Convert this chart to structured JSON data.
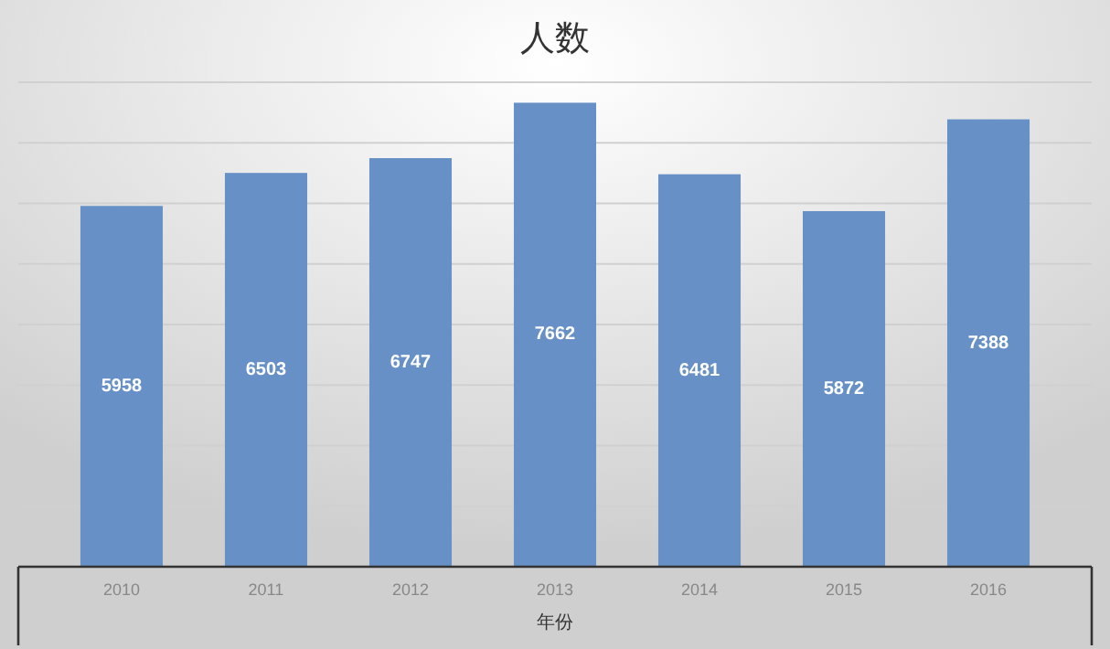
{
  "chart_data": {
    "type": "bar",
    "title": "人数",
    "xlabel": "年份",
    "categories": [
      "2010",
      "2011",
      "2012",
      "2013",
      "2014",
      "2015",
      "2016"
    ],
    "values": [
      5958,
      6503,
      6747,
      7662,
      6481,
      5872,
      7388
    ],
    "color": "#6690c6",
    "ylim": [
      0,
      8000
    ],
    "tick_labels": "x",
    "grid": "y",
    "data_labels": true
  }
}
